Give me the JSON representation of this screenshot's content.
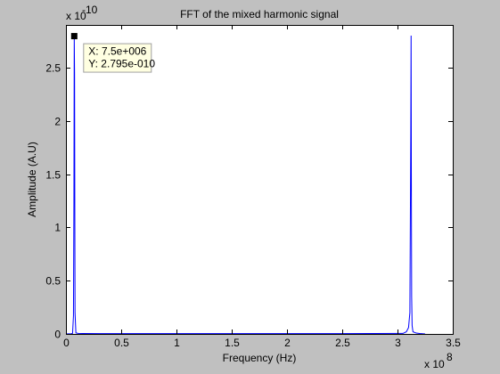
{
  "figure": {
    "background": "#c0c0c0",
    "axes_background": "#ffffff",
    "line_color": "#0000ff"
  },
  "chart_data": {
    "type": "line",
    "title": "FFT of the mixed harmonic signal",
    "xlabel": "Frequency (Hz)",
    "ylabel": "Amplitude (A.U)",
    "x_exponent": {
      "base": "x 10",
      "power": "8"
    },
    "y_exponent": {
      "base": "x 10",
      "power": "-10"
    },
    "xlim": [
      0,
      3.5
    ],
    "ylim": [
      0,
      2.9
    ],
    "xticks": [
      0,
      0.5,
      1,
      1.5,
      2,
      2.5,
      3,
      3.5
    ],
    "xtick_labels": [
      "0",
      "0.5",
      "1",
      "1.5",
      "2",
      "2.5",
      "3",
      "3.5"
    ],
    "yticks": [
      0,
      0.5,
      1,
      1.5,
      2,
      2.5
    ],
    "ytick_labels": [
      "0",
      "0.5",
      "1",
      "1.5",
      "2",
      "2.5"
    ],
    "grid": false,
    "series": [
      {
        "x": [
          0,
          0.05,
          0.06,
          0.068,
          0.072,
          0.075,
          0.078,
          0.082,
          0.09,
          0.11,
          0.15,
          0.3,
          0.8,
          1.3,
          1.8,
          2.3,
          2.8,
          3.05,
          3.08,
          3.1,
          3.112,
          3.12,
          3.123,
          3.125,
          3.128,
          3.132,
          3.14,
          3.17,
          3.2,
          3.25
        ],
        "y": [
          0,
          0.002,
          0.006,
          0.17,
          1.23,
          2.795,
          2.44,
          0.2,
          0.01,
          0.005,
          0.004,
          0.003,
          0.003,
          0.003,
          0.003,
          0.003,
          0.004,
          0.005,
          0.02,
          0.06,
          0.2,
          1.85,
          2.8,
          1.62,
          0.35,
          0.08,
          0.02,
          0.008,
          0.004,
          0
        ]
      }
    ],
    "datatip": {
      "x_value": 0.075,
      "y_value": 2.795,
      "lines": [
        "X: 7.5e+006",
        "Y: 2.795e-010"
      ]
    }
  }
}
